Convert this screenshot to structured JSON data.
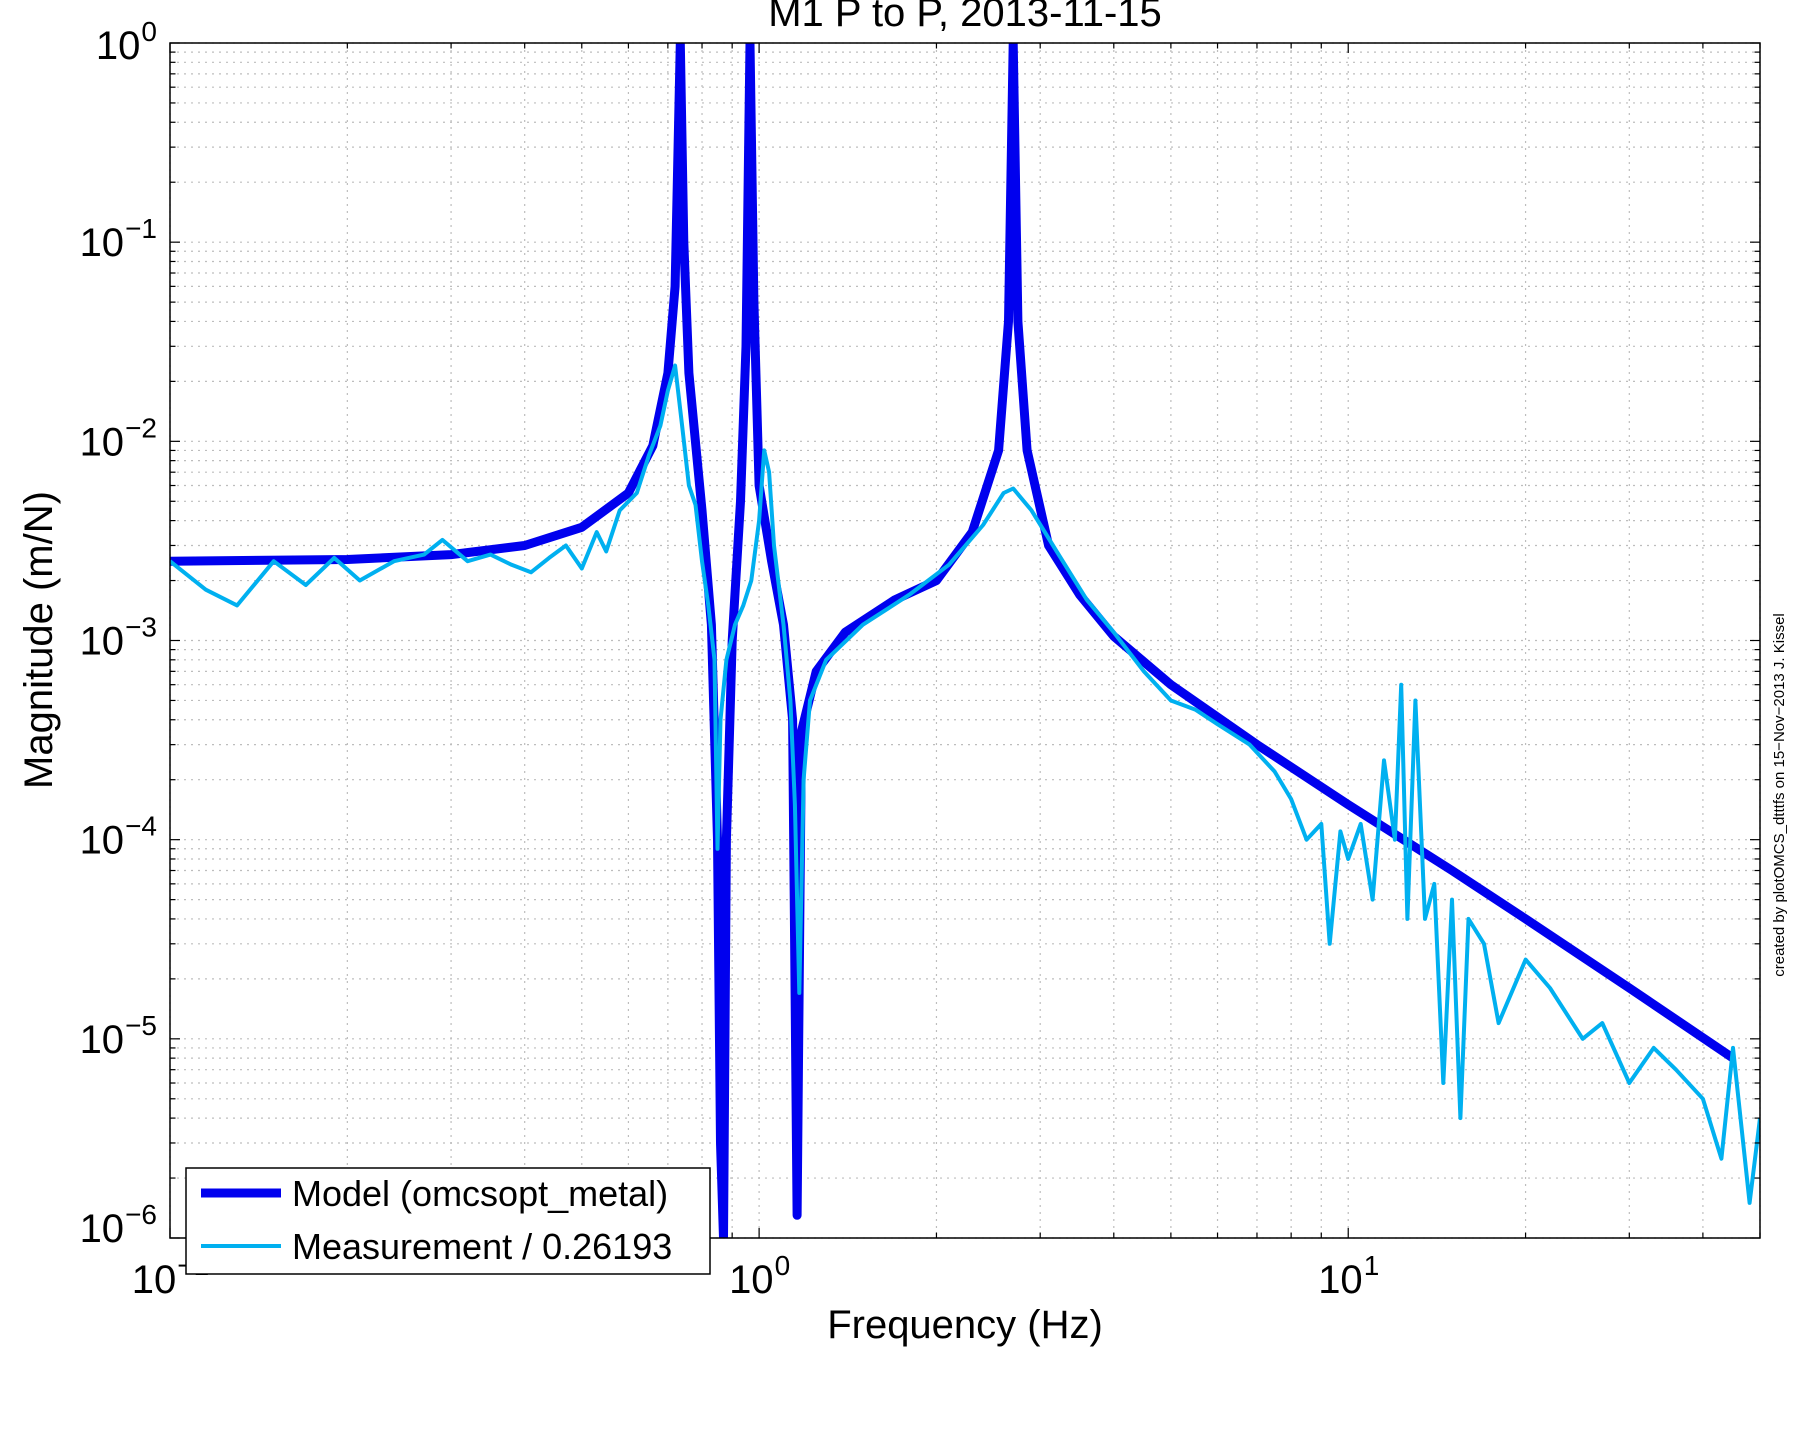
{
  "chart_data": {
    "type": "line",
    "title": "M1 P to P, 2013-11-15",
    "xlabel": "Frequency (Hz)",
    "ylabel": "Magnitude (m/N)",
    "xscale": "log",
    "yscale": "log",
    "xlim": [
      0.1,
      50
    ],
    "ylim": [
      1e-06,
      1
    ],
    "grid": true,
    "legend_position": "bottom-left",
    "x_ticks": [
      {
        "base": "10",
        "exp": "−1",
        "value": 0.1
      },
      {
        "base": "10",
        "exp": "0",
        "value": 1
      },
      {
        "base": "10",
        "exp": "1",
        "value": 10
      }
    ],
    "y_ticks": [
      {
        "base": "10",
        "exp": "0",
        "value": 1
      },
      {
        "base": "10",
        "exp": "−1",
        "value": 0.1
      },
      {
        "base": "10",
        "exp": "−2",
        "value": 0.01
      },
      {
        "base": "10",
        "exp": "−3",
        "value": 0.001
      },
      {
        "base": "10",
        "exp": "−4",
        "value": 0.0001
      },
      {
        "base": "10",
        "exp": "−5",
        "value": 1e-05
      },
      {
        "base": "10",
        "exp": "−6",
        "value": 1e-06
      }
    ],
    "series": [
      {
        "name": "Model (omcsopt_metal)",
        "color": "#0000ee",
        "points": [
          [
            0.1,
            0.0025
          ],
          [
            0.2,
            0.00255
          ],
          [
            0.3,
            0.0027
          ],
          [
            0.4,
            0.003
          ],
          [
            0.5,
            0.0037
          ],
          [
            0.6,
            0.0055
          ],
          [
            0.66,
            0.0095
          ],
          [
            0.7,
            0.022
          ],
          [
            0.72,
            0.06
          ],
          [
            0.735,
            1.0
          ],
          [
            0.745,
            0.1
          ],
          [
            0.76,
            0.022
          ],
          [
            0.8,
            0.0045
          ],
          [
            0.83,
            0.0012
          ],
          [
            0.85,
            0.0001
          ],
          [
            0.86,
            3e-06
          ],
          [
            0.87,
            1e-06
          ],
          [
            0.88,
            0.0001
          ],
          [
            0.9,
            0.001
          ],
          [
            0.93,
            0.005
          ],
          [
            0.95,
            0.03
          ],
          [
            0.965,
            1.0
          ],
          [
            0.98,
            0.05
          ],
          [
            1.0,
            0.006
          ],
          [
            1.05,
            0.0025
          ],
          [
            1.1,
            0.0012
          ],
          [
            1.14,
            0.0004
          ],
          [
            1.16,
            1.3e-06
          ],
          [
            1.18,
            0.00035
          ],
          [
            1.25,
            0.0007
          ],
          [
            1.4,
            0.0011
          ],
          [
            1.7,
            0.0016
          ],
          [
            2.0,
            0.002
          ],
          [
            2.3,
            0.0035
          ],
          [
            2.55,
            0.009
          ],
          [
            2.65,
            0.04
          ],
          [
            2.7,
            1.0
          ],
          [
            2.75,
            0.04
          ],
          [
            2.85,
            0.009
          ],
          [
            3.1,
            0.003
          ],
          [
            3.5,
            0.0017
          ],
          [
            4.0,
            0.00105
          ],
          [
            5.0,
            0.0006
          ],
          [
            7.0,
            0.0003
          ],
          [
            10.0,
            0.00015
          ],
          [
            15.0,
            7e-05
          ],
          [
            20.0,
            4e-05
          ],
          [
            30.0,
            1.8e-05
          ],
          [
            45.0,
            8e-06
          ]
        ]
      },
      {
        "name": "Measurement / 0.26193",
        "color": "#00b0f0",
        "points": [
          [
            0.1,
            0.0025
          ],
          [
            0.115,
            0.0018
          ],
          [
            0.13,
            0.0015
          ],
          [
            0.15,
            0.0025
          ],
          [
            0.17,
            0.0019
          ],
          [
            0.19,
            0.0026
          ],
          [
            0.21,
            0.002
          ],
          [
            0.24,
            0.0025
          ],
          [
            0.27,
            0.0027
          ],
          [
            0.29,
            0.0032
          ],
          [
            0.32,
            0.0025
          ],
          [
            0.35,
            0.0027
          ],
          [
            0.38,
            0.0024
          ],
          [
            0.41,
            0.0022
          ],
          [
            0.44,
            0.0026
          ],
          [
            0.47,
            0.003
          ],
          [
            0.5,
            0.0023
          ],
          [
            0.53,
            0.0035
          ],
          [
            0.55,
            0.0028
          ],
          [
            0.58,
            0.0045
          ],
          [
            0.62,
            0.0055
          ],
          [
            0.65,
            0.0085
          ],
          [
            0.68,
            0.012
          ],
          [
            0.7,
            0.018
          ],
          [
            0.72,
            0.024
          ],
          [
            0.74,
            0.012
          ],
          [
            0.76,
            0.006
          ],
          [
            0.78,
            0.0048
          ],
          [
            0.8,
            0.0025
          ],
          [
            0.82,
            0.0015
          ],
          [
            0.84,
            0.0008
          ],
          [
            0.85,
            9e-05
          ],
          [
            0.86,
            0.0004
          ],
          [
            0.88,
            0.0008
          ],
          [
            0.91,
            0.0012
          ],
          [
            0.94,
            0.0015
          ],
          [
            0.97,
            0.002
          ],
          [
            1.0,
            0.004
          ],
          [
            1.02,
            0.009
          ],
          [
            1.04,
            0.007
          ],
          [
            1.06,
            0.003
          ],
          [
            1.1,
            0.0012
          ],
          [
            1.13,
            0.0005
          ],
          [
            1.15,
            0.00015
          ],
          [
            1.17,
            1.7e-05
          ],
          [
            1.19,
            0.0002
          ],
          [
            1.22,
            0.0005
          ],
          [
            1.3,
            0.0008
          ],
          [
            1.5,
            0.0012
          ],
          [
            1.8,
            0.0017
          ],
          [
            2.1,
            0.0024
          ],
          [
            2.4,
            0.0038
          ],
          [
            2.6,
            0.0055
          ],
          [
            2.7,
            0.0058
          ],
          [
            2.9,
            0.0045
          ],
          [
            3.2,
            0.0028
          ],
          [
            3.6,
            0.0016
          ],
          [
            4.0,
            0.0011
          ],
          [
            4.5,
            0.0007
          ],
          [
            5.0,
            0.0005
          ],
          [
            5.5,
            0.00045
          ],
          [
            6.0,
            0.00038
          ],
          [
            6.8,
            0.0003
          ],
          [
            7.5,
            0.00022
          ],
          [
            8.0,
            0.00016
          ],
          [
            8.5,
            0.0001
          ],
          [
            9.0,
            0.00012
          ],
          [
            9.3,
            3e-05
          ],
          [
            9.7,
            0.00011
          ],
          [
            10.0,
            8e-05
          ],
          [
            10.5,
            0.00012
          ],
          [
            11.0,
            5e-05
          ],
          [
            11.5,
            0.00025
          ],
          [
            12.0,
            0.0001
          ],
          [
            12.3,
            0.0006
          ],
          [
            12.6,
            4e-05
          ],
          [
            13.0,
            0.0005
          ],
          [
            13.5,
            4e-05
          ],
          [
            14.0,
            6e-05
          ],
          [
            14.5,
            6e-06
          ],
          [
            15.0,
            5e-05
          ],
          [
            15.5,
            4e-06
          ],
          [
            16.0,
            4e-05
          ],
          [
            17.0,
            3e-05
          ],
          [
            18.0,
            1.2e-05
          ],
          [
            20.0,
            2.5e-05
          ],
          [
            22.0,
            1.8e-05
          ],
          [
            25.0,
            1e-05
          ],
          [
            27.0,
            1.2e-05
          ],
          [
            30.0,
            6e-06
          ],
          [
            33.0,
            9e-06
          ],
          [
            36.0,
            7e-06
          ],
          [
            40.0,
            5e-06
          ],
          [
            43.0,
            2.5e-06
          ],
          [
            45.0,
            9e-06
          ],
          [
            48.0,
            1.5e-06
          ],
          [
            50.0,
            4e-06
          ]
        ]
      }
    ],
    "annotation": "created by plotOMCS_dtttfs on 15−Nov−2013 J. Kissel"
  }
}
